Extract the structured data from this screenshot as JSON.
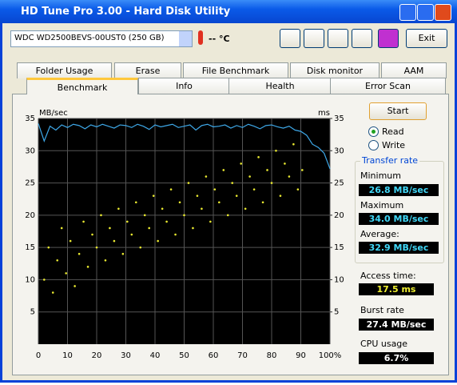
{
  "window": {
    "title": "HD Tune Pro 3.00 - Hard Disk Utility"
  },
  "toolbar": {
    "drive": "WDC WD2500BEVS-00UST0 (250 GB)",
    "temperature": "-- °C",
    "exit": "Exit"
  },
  "tabs": {
    "row1": [
      "Folder Usage",
      "Erase",
      "File Benchmark",
      "Disk monitor",
      "AAM"
    ],
    "row2": [
      "Benchmark",
      "Info",
      "Health",
      "Error Scan"
    ]
  },
  "controls": {
    "start": "Start",
    "read": "Read",
    "write": "Write"
  },
  "transfer_rate": {
    "title": "Transfer rate",
    "minimum": {
      "label": "Minimum",
      "value": "26.8 MB/sec"
    },
    "maximum": {
      "label": "Maximum",
      "value": "34.0 MB/sec"
    },
    "average": {
      "label": "Average:",
      "value": "32.9 MB/sec"
    }
  },
  "stats": {
    "access_time": {
      "label": "Access time:",
      "value": "17.5 ms"
    },
    "burst_rate": {
      "label": "Burst rate",
      "value": "27.4 MB/sec"
    },
    "cpu_usage": {
      "label": "CPU usage",
      "value": "6.7%"
    }
  },
  "chart_data": {
    "type": "line",
    "y_label": "MB/sec",
    "y2_label": "ms",
    "xlim": [
      0,
      100
    ],
    "xticks": [
      0,
      10,
      20,
      30,
      40,
      50,
      60,
      70,
      80,
      90,
      {
        "value": 100,
        "label": "100%"
      }
    ],
    "ylim": [
      0,
      35
    ],
    "yticks": [
      5,
      10,
      15,
      20,
      25,
      30,
      35
    ],
    "y2lim": [
      0,
      35
    ],
    "y2ticks": [
      5,
      10,
      15,
      20,
      25,
      30,
      35
    ],
    "grid": true,
    "series": [
      {
        "type": "line",
        "color": "#3ea8e8",
        "x": [
          0,
          2,
          4,
          6,
          8,
          10,
          12,
          14,
          16,
          18,
          20,
          22,
          24,
          26,
          28,
          30,
          32,
          34,
          36,
          38,
          40,
          42,
          44,
          46,
          48,
          50,
          52,
          54,
          56,
          58,
          60,
          62,
          64,
          66,
          68,
          70,
          72,
          74,
          76,
          78,
          80,
          82,
          84,
          86,
          88,
          90,
          92,
          94,
          96,
          98,
          100
        ],
        "values": [
          34.2,
          31.5,
          33.8,
          33.2,
          34.0,
          33.6,
          34.1,
          33.9,
          33.4,
          34.0,
          33.7,
          34.1,
          33.8,
          33.5,
          34.0,
          33.9,
          33.6,
          34.1,
          33.8,
          33.3,
          34.0,
          33.7,
          33.9,
          34.1,
          33.6,
          33.8,
          34.0,
          33.2,
          33.9,
          34.1,
          33.7,
          33.8,
          34.0,
          33.5,
          33.9,
          33.6,
          34.1,
          33.8,
          33.4,
          33.9,
          34.0,
          33.7,
          33.5,
          33.8,
          33.2,
          33.0,
          32.4,
          31.0,
          30.5,
          29.6,
          27.2
        ]
      },
      {
        "type": "scatter",
        "axis": "y2",
        "color": "#e8e830",
        "x": [
          2,
          3.5,
          5,
          6.5,
          8,
          9.5,
          11,
          12.5,
          14,
          15.5,
          17,
          18.5,
          20,
          21.5,
          23,
          24.5,
          26,
          27.5,
          29,
          30.5,
          32,
          33.5,
          35,
          36.5,
          38,
          39.5,
          41,
          42.5,
          44,
          45.5,
          47,
          48.5,
          50,
          51.5,
          53,
          54.5,
          56,
          57.5,
          59,
          60.5,
          62,
          63.5,
          65,
          66.5,
          68,
          69.5,
          71,
          72.5,
          74,
          75.5,
          77,
          78.5,
          80,
          81.5,
          83,
          84.5,
          86,
          87.5,
          89,
          90.5
        ],
        "values": [
          10,
          15,
          8,
          13,
          18,
          11,
          16,
          9,
          14,
          19,
          12,
          17,
          15,
          20,
          13,
          18,
          16,
          21,
          14,
          19,
          17,
          22,
          15,
          20,
          18,
          23,
          16,
          21,
          19,
          24,
          17,
          22,
          20,
          25,
          18,
          23,
          21,
          26,
          19,
          24,
          22,
          27,
          20,
          25,
          23,
          28,
          21,
          26,
          24,
          29,
          22,
          27,
          25,
          30,
          23,
          28,
          26,
          31,
          24,
          27
        ]
      }
    ]
  }
}
